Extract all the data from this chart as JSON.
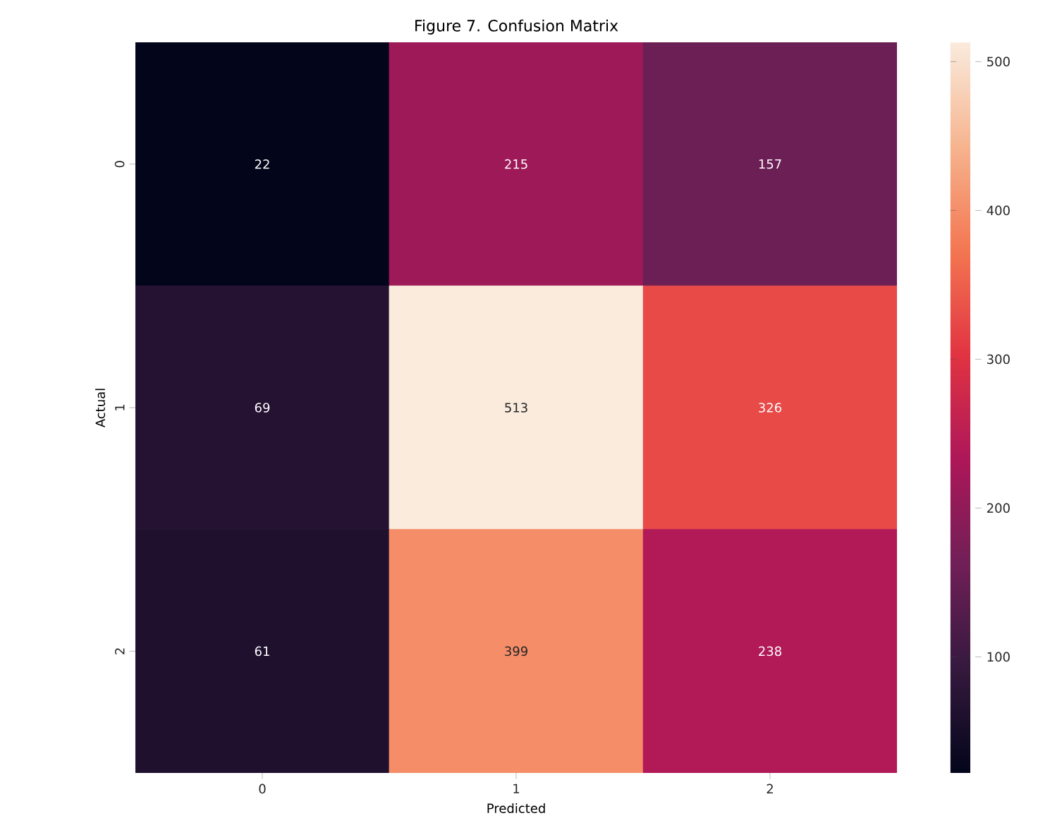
{
  "chart_data": {
    "type": "heatmap",
    "title": "Figure 7. Confusion Matrix",
    "xlabel": "Predicted",
    "ylabel": "Actual",
    "categories": [
      "0",
      "1",
      "2"
    ],
    "y_categories": [
      "0",
      "1",
      "2"
    ],
    "cells": [
      [
        22,
        215,
        157
      ],
      [
        69,
        513,
        326
      ],
      [
        61,
        399,
        238
      ]
    ],
    "clim": [
      22,
      513
    ],
    "cticks": [
      100,
      200,
      300,
      400,
      500
    ],
    "data_labels": true
  }
}
